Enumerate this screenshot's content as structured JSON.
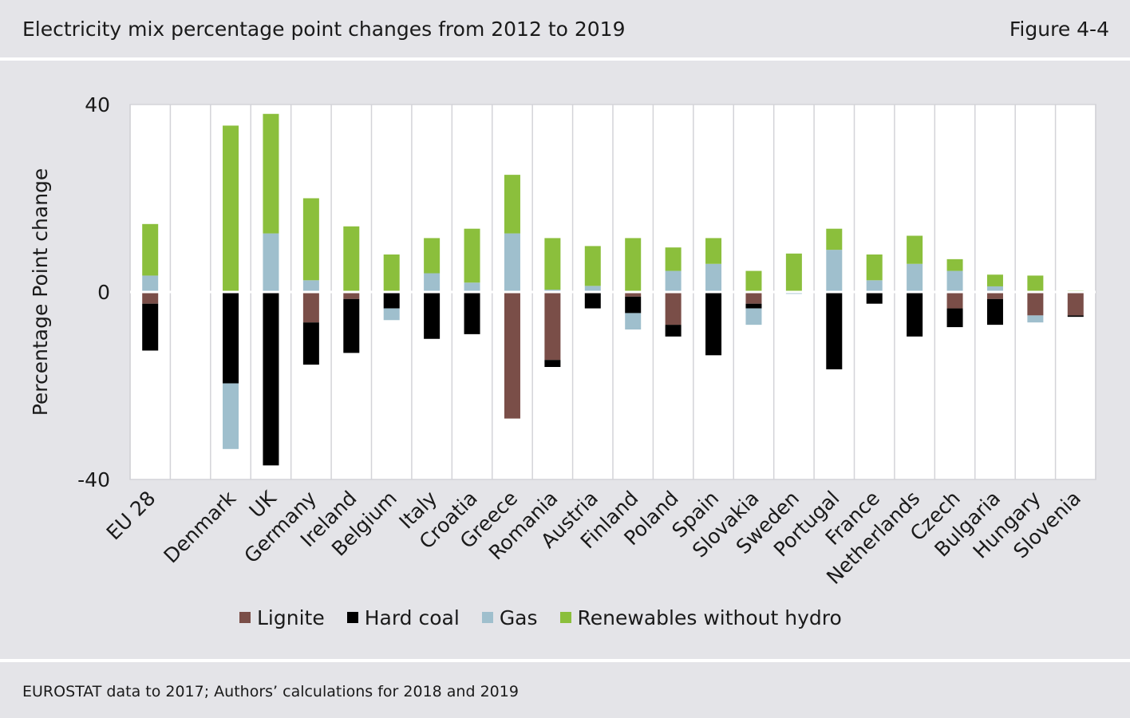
{
  "header": {
    "title": "Electricity mix percentage point changes from 2012 to 2019",
    "figure_label": "Figure 4-4"
  },
  "footer": {
    "source": "EUROSTAT data to 2017; Authors’ calculations for 2018 and 2019"
  },
  "colors": {
    "Lignite": "#7a4e48",
    "Hard coal": "#000000",
    "Gas": "#9fbfcd",
    "Renewables without hydro": "#8bbf3c"
  },
  "chart_data": {
    "type": "bar",
    "stacked": true,
    "title": "Electricity mix percentage point changes from 2012 to 2019",
    "xlabel": "",
    "ylabel": "Percentage Point change",
    "ylim": [
      -40,
      40
    ],
    "yticks": [
      40,
      0,
      -40
    ],
    "yticklabels": [
      "40",
      "0",
      "-40"
    ],
    "grid": "vertical",
    "legend_position": "bottom",
    "categories": [
      "EU 28",
      "",
      "Denmark",
      "UK",
      "Germany",
      "Ireland",
      "Belgium",
      "Italy",
      "Croatia",
      "Greece",
      "Romania",
      "Austria",
      "Finland",
      "Poland",
      "Spain",
      "Slovakia",
      "Sweden",
      "Portugal",
      "France",
      "Netherlands",
      "Czech",
      "Bulgaria",
      "Hungary",
      "Slovenia"
    ],
    "series": [
      {
        "name": "Lignite",
        "values": [
          -2.5,
          0,
          0,
          0,
          -6.5,
          -1.5,
          0,
          0,
          0,
          -27,
          -14.5,
          0,
          -1,
          -7,
          0,
          -2.5,
          0,
          0,
          0,
          0,
          -3.5,
          -1.5,
          -5,
          -5
        ]
      },
      {
        "name": "Hard coal",
        "values": [
          -10,
          0,
          -19.5,
          -37,
          -9,
          -11.5,
          -3.5,
          -10,
          -9,
          0,
          -1.5,
          -3.5,
          -3.5,
          -2.5,
          -13.5,
          -1,
          0,
          -16.5,
          -2.5,
          -9.5,
          -4,
          -5.5,
          0,
          -0.3
        ]
      },
      {
        "name": "Gas",
        "values": [
          3.5,
          0,
          -14,
          0,
          0,
          0,
          -2.5,
          0,
          0,
          0,
          0,
          0,
          -3.5,
          0,
          0,
          -3.5,
          -0.4,
          0,
          0,
          0,
          0,
          0,
          -1.5,
          0
        ]
      },
      {
        "name": "Gas",
        "values": [
          0,
          0,
          0,
          12.5,
          2.5,
          0,
          0,
          4,
          2,
          12.5,
          0.5,
          1.3,
          0,
          4.5,
          6,
          0,
          0,
          9,
          2.5,
          6,
          4.5,
          1.2,
          0,
          0
        ]
      },
      {
        "name": "Renewables without hydro",
        "values": [
          11,
          0,
          35.5,
          25.5,
          17.5,
          14,
          8,
          7.5,
          11.5,
          12.5,
          11,
          8.5,
          11.5,
          5,
          5.5,
          4.5,
          8.2,
          4.5,
          5.5,
          6,
          2.5,
          2.5,
          3.5,
          0.3
        ]
      }
    ]
  },
  "legend": [
    {
      "label": "Lignite"
    },
    {
      "label": "Hard coal"
    },
    {
      "label": "Gas"
    },
    {
      "label": "Renewables without hydro"
    }
  ]
}
